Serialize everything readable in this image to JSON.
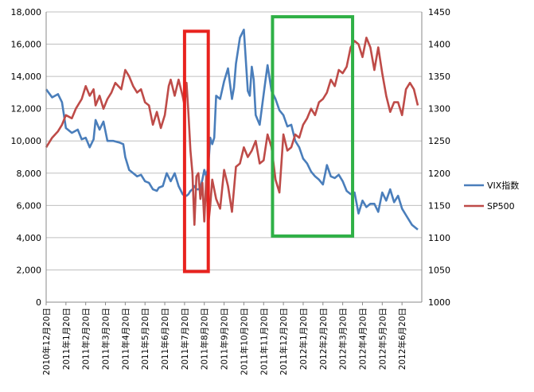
{
  "chart_data": {
    "type": "line",
    "title": "",
    "xlabel": "",
    "ylabel": "",
    "y_left_range": [
      0,
      18000
    ],
    "y_left_ticks": [
      0,
      2000,
      4000,
      6000,
      8000,
      10000,
      12000,
      14000,
      16000,
      18000
    ],
    "y_left_tick_labels": [
      "0",
      "2,000",
      "4,000",
      "6,000",
      "8,000",
      "10,000",
      "12,000",
      "14,000",
      "16,000",
      "18,000"
    ],
    "y_right_range": [
      1000,
      1450
    ],
    "y_right_ticks": [
      1000,
      1050,
      1100,
      1150,
      1200,
      1250,
      1300,
      1350,
      1400,
      1450
    ],
    "y_right_tick_labels": [
      "1000",
      "1050",
      "1100",
      "1150",
      "1200",
      "1250",
      "1300",
      "1350",
      "1400",
      "1450"
    ],
    "x_range": [
      0,
      19
    ],
    "x_ticks": [
      0,
      1,
      2,
      3,
      4,
      5,
      6,
      7,
      8,
      9,
      10,
      11,
      12,
      13,
      14,
      15,
      16,
      17,
      18
    ],
    "x_tick_labels": [
      "2010年12月20日",
      "2011年1月20日",
      "2011年2月20日",
      "2011年3月20日",
      "2011年4月20日",
      "2011年5月20日",
      "2011年6月20日",
      "2011年7月20日",
      "2011年8月20日",
      "2011年9月20日",
      "2011年10月20日",
      "2011年11月20日",
      "2011年12月20日",
      "2012年1月20日",
      "2012年2月20日",
      "2012年3月20日",
      "2012年4月20日",
      "2012年5月20日",
      "2012年6月20日"
    ],
    "legend_position": "right",
    "grid": "horizontal",
    "series": [
      {
        "name": "VIX指数",
        "axis": "left",
        "color": "#4a7ebb",
        "x": [
          0,
          0.3,
          0.6,
          0.8,
          1.0,
          1.3,
          1.6,
          1.8,
          2.0,
          2.2,
          2.4,
          2.5,
          2.7,
          2.9,
          3.1,
          3.4,
          3.7,
          3.9,
          4.0,
          4.2,
          4.4,
          4.6,
          4.8,
          5.0,
          5.2,
          5.4,
          5.6,
          5.7,
          5.9,
          6.1,
          6.3,
          6.5,
          6.7,
          6.9,
          7.0,
          7.1,
          7.2,
          7.3,
          7.4,
          7.5,
          7.6,
          7.7,
          7.8,
          7.9,
          8.0,
          8.1,
          8.2,
          8.3,
          8.4,
          8.5,
          8.6,
          8.8,
          9.0,
          9.2,
          9.4,
          9.5,
          9.6,
          9.8,
          10.0,
          10.2,
          10.3,
          10.4,
          10.5,
          10.6,
          10.8,
          11.0,
          11.1,
          11.2,
          11.4,
          11.6,
          11.8,
          12.0,
          12.2,
          12.4,
          12.6,
          12.8,
          13.0,
          13.2,
          13.4,
          13.6,
          13.8,
          14.0,
          14.2,
          14.4,
          14.6,
          14.8,
          15.0,
          15.2,
          15.4,
          15.6,
          15.8,
          16.0,
          16.2,
          16.4,
          16.6,
          16.8,
          17.0,
          17.2,
          17.4,
          17.6,
          17.8,
          18.0,
          18.2,
          18.5,
          18.8
        ],
        "values": [
          13200,
          12700,
          12900,
          12400,
          10800,
          10500,
          10700,
          10100,
          10200,
          9600,
          10100,
          11300,
          10700,
          11200,
          10000,
          10000,
          9900,
          9800,
          9000,
          8200,
          8000,
          7800,
          7900,
          7500,
          7400,
          7000,
          6900,
          7100,
          7200,
          8000,
          7500,
          8000,
          7200,
          6700,
          6600,
          6600,
          6700,
          6900,
          7000,
          7200,
          7000,
          7000,
          7100,
          7600,
          8200,
          7800,
          8400,
          10200,
          9800,
          10200,
          12800,
          12600,
          13700,
          14500,
          12600,
          13300,
          14800,
          16400,
          16900,
          13100,
          12800,
          14600,
          13800,
          11600,
          11000,
          12900,
          13800,
          14700,
          13100,
          12600,
          11900,
          11600,
          10900,
          11000,
          10000,
          9600,
          8900,
          8600,
          8100,
          7800,
          7600,
          7300,
          8500,
          7800,
          7700,
          7900,
          7500,
          6900,
          6700,
          6800,
          5500,
          6300,
          5900,
          6100,
          6100,
          5600,
          6800,
          6300,
          7000,
          6200,
          6600,
          5800,
          5400,
          4800,
          4500
        ]
      },
      {
        "name": "SP500",
        "axis": "right",
        "color": "#be4b48",
        "x": [
          0,
          0.3,
          0.6,
          0.8,
          1.0,
          1.3,
          1.5,
          1.8,
          2.0,
          2.2,
          2.4,
          2.5,
          2.7,
          2.9,
          3.1,
          3.3,
          3.5,
          3.8,
          4.0,
          4.2,
          4.4,
          4.6,
          4.8,
          5.0,
          5.2,
          5.4,
          5.6,
          5.8,
          6.0,
          6.2,
          6.3,
          6.5,
          6.7,
          6.9,
          7.0,
          7.1,
          7.2,
          7.3,
          7.4,
          7.5,
          7.6,
          7.7,
          7.8,
          7.9,
          8.0,
          8.1,
          8.2,
          8.3,
          8.4,
          8.6,
          8.8,
          9.0,
          9.2,
          9.4,
          9.6,
          9.8,
          10.0,
          10.2,
          10.4,
          10.6,
          10.8,
          11.0,
          11.2,
          11.4,
          11.6,
          11.8,
          12.0,
          12.2,
          12.4,
          12.6,
          12.8,
          13.0,
          13.2,
          13.4,
          13.6,
          13.8,
          14.0,
          14.2,
          14.4,
          14.6,
          14.8,
          15.0,
          15.2,
          15.4,
          15.6,
          15.8,
          16.0,
          16.2,
          16.4,
          16.6,
          16.8,
          17.0,
          17.2,
          17.4,
          17.6,
          17.8,
          18.0,
          18.2,
          18.4,
          18.6,
          18.8
        ],
        "values": [
          1240,
          1255,
          1265,
          1275,
          1290,
          1285,
          1300,
          1315,
          1335,
          1320,
          1330,
          1305,
          1320,
          1300,
          1315,
          1325,
          1340,
          1330,
          1360,
          1350,
          1335,
          1325,
          1330,
          1310,
          1305,
          1275,
          1295,
          1270,
          1290,
          1335,
          1345,
          1320,
          1345,
          1320,
          1305,
          1340,
          1290,
          1235,
          1200,
          1120,
          1195,
          1200,
          1160,
          1185,
          1125,
          1195,
          1120,
          1150,
          1190,
          1160,
          1145,
          1205,
          1180,
          1140,
          1210,
          1215,
          1240,
          1225,
          1235,
          1250,
          1215,
          1220,
          1260,
          1240,
          1190,
          1170,
          1260,
          1235,
          1240,
          1260,
          1255,
          1275,
          1285,
          1300,
          1290,
          1310,
          1315,
          1325,
          1345,
          1335,
          1360,
          1355,
          1365,
          1395,
          1405,
          1400,
          1380,
          1410,
          1395,
          1360,
          1395,
          1355,
          1320,
          1295,
          1310,
          1310,
          1290,
          1330,
          1340,
          1330,
          1305
        ]
      }
    ]
  },
  "annotations": {
    "red_box_color": "#e8221e",
    "green_box_color": "#2fb046"
  }
}
